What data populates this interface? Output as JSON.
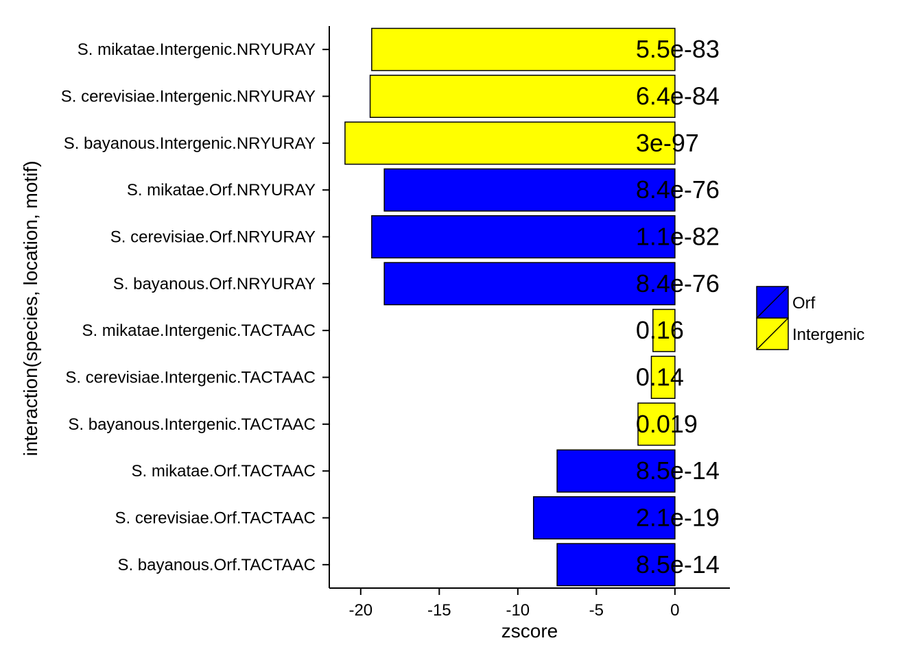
{
  "chart_data": {
    "type": "bar",
    "orientation": "horizontal",
    "xlabel": "zscore",
    "ylabel": "interaction(species, location, motif)",
    "xlim": [
      -22,
      3.5
    ],
    "x_ticks": [
      -20,
      -15,
      -10,
      -5,
      0
    ],
    "x_tick_labels": [
      "-20",
      "-15",
      "-10",
      "-5",
      "0"
    ],
    "grid": false,
    "legend_position": "right",
    "colors": {
      "Orf": "#0000ff",
      "Intergenic": "#ffff00"
    },
    "legend": [
      {
        "name": "Orf",
        "color": "#0000ff"
      },
      {
        "name": "Intergenic",
        "color": "#ffff00"
      }
    ],
    "bars": [
      {
        "category": "S. mikatae.Intergenic.NRYURAY",
        "value": -19.3,
        "group": "Intergenic",
        "label": "5.5e-83"
      },
      {
        "category": "S. cerevisiae.Intergenic.NRYURAY",
        "value": -19.4,
        "group": "Intergenic",
        "label": "6.4e-84"
      },
      {
        "category": "S. bayanous.Intergenic.NRYURAY",
        "value": -21.0,
        "group": "Intergenic",
        "label": "3e-97"
      },
      {
        "category": "S. mikatae.Orf.NRYURAY",
        "value": -18.5,
        "group": "Orf",
        "label": "8.4e-76"
      },
      {
        "category": "S. cerevisiae.Orf.NRYURAY",
        "value": -19.3,
        "group": "Orf",
        "label": "1.1e-82"
      },
      {
        "category": "S. bayanous.Orf.NRYURAY",
        "value": -18.5,
        "group": "Orf",
        "label": "8.4e-76"
      },
      {
        "category": "S. mikatae.Intergenic.TACTAAC",
        "value": -1.4,
        "group": "Intergenic",
        "label": "0.16"
      },
      {
        "category": "S. cerevisiae.Intergenic.TACTAAC",
        "value": -1.5,
        "group": "Intergenic",
        "label": "0.14"
      },
      {
        "category": "S. bayanous.Intergenic.TACTAAC",
        "value": -2.35,
        "group": "Intergenic",
        "label": "0.019"
      },
      {
        "category": "S. mikatae.Orf.TACTAAC",
        "value": -7.5,
        "group": "Orf",
        "label": "8.5e-14"
      },
      {
        "category": "S. cerevisiae.Orf.TACTAAC",
        "value": -9.0,
        "group": "Orf",
        "label": "2.1e-19"
      },
      {
        "category": "S. bayanous.Orf.TACTAAC",
        "value": -7.5,
        "group": "Orf",
        "label": "8.5e-14"
      }
    ]
  }
}
